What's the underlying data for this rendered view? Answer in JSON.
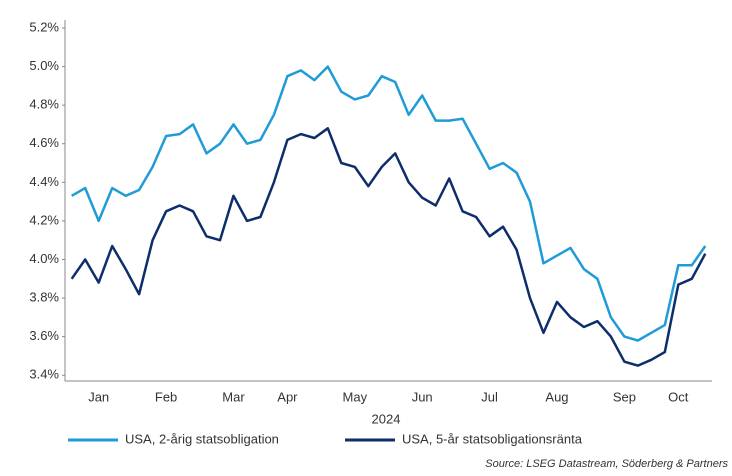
{
  "chart_data": {
    "type": "line",
    "xlabel": "2024",
    "source": "Source: LSEG Datastream, Söderberg & Partners",
    "categories": [
      null,
      null,
      "Jan",
      null,
      null,
      null,
      null,
      "Feb",
      null,
      null,
      null,
      null,
      "Mar",
      null,
      null,
      null,
      "Apr",
      null,
      null,
      null,
      null,
      "May",
      null,
      null,
      null,
      null,
      "Jun",
      null,
      null,
      null,
      null,
      "Jul",
      null,
      null,
      null,
      null,
      "Aug",
      null,
      null,
      null,
      null,
      "Sep",
      null,
      null,
      null,
      "Oct",
      null,
      null
    ],
    "series": [
      {
        "name": "USA, 2-årig statsobligation",
        "color": "#1f9bd7",
        "values": [
          4.33,
          4.37,
          4.2,
          4.37,
          4.33,
          4.36,
          4.48,
          4.64,
          4.65,
          4.7,
          4.55,
          4.6,
          4.7,
          4.6,
          4.62,
          4.75,
          4.95,
          4.98,
          4.93,
          5.0,
          4.87,
          4.83,
          4.85,
          4.95,
          4.92,
          4.75,
          4.85,
          4.72,
          4.72,
          4.73,
          4.6,
          4.47,
          4.5,
          4.45,
          4.3,
          3.98,
          4.02,
          4.06,
          3.95,
          3.9,
          3.7,
          3.6,
          3.58,
          3.62,
          3.66,
          3.97,
          3.97,
          4.07
        ]
      },
      {
        "name": "USA, 5-år statsobligationsränta",
        "color": "#0d2d6b",
        "values": [
          3.9,
          4.0,
          3.88,
          4.07,
          3.95,
          3.82,
          4.1,
          4.25,
          4.28,
          4.25,
          4.12,
          4.1,
          4.33,
          4.2,
          4.22,
          4.4,
          4.62,
          4.65,
          4.63,
          4.68,
          4.5,
          4.48,
          4.38,
          4.48,
          4.55,
          4.4,
          4.32,
          4.28,
          4.42,
          4.25,
          4.22,
          4.12,
          4.17,
          4.05,
          3.8,
          3.62,
          3.78,
          3.7,
          3.65,
          3.68,
          3.6,
          3.47,
          3.45,
          3.48,
          3.52,
          3.87,
          3.9,
          4.03
        ]
      }
    ],
    "ylim": [
      3.37,
      5.2
    ],
    "yticks": [
      {
        "value": 3.4,
        "label": "3.4%"
      },
      {
        "value": 3.6,
        "label": "3.6%"
      },
      {
        "value": 3.8,
        "label": "3.8%"
      },
      {
        "value": 4.0,
        "label": "4.0%"
      },
      {
        "value": 4.2,
        "label": "4.2%"
      },
      {
        "value": 4.4,
        "label": "4.4%"
      },
      {
        "value": 4.6,
        "label": "4.6%"
      },
      {
        "value": 4.8,
        "label": "4.8%"
      },
      {
        "value": 5.0,
        "label": "5.0%"
      },
      {
        "value": 5.2,
        "label": "5.2%"
      }
    ],
    "grid": false
  }
}
